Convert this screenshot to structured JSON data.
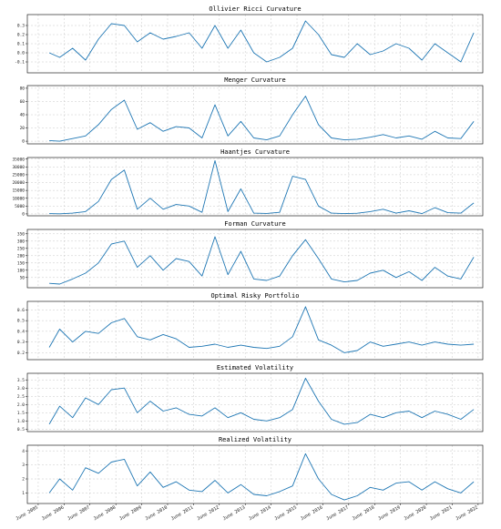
{
  "x_tick_labels": [
    "June 2005",
    "June 2006",
    "June 2007",
    "June 2008",
    "June 2009",
    "June 2010",
    "June 2011",
    "June 2012",
    "June 2013",
    "June 2014",
    "June 2015",
    "June 2016",
    "June 2017",
    "June 2018",
    "June 2019",
    "June 2020",
    "June 2021",
    "June 2022"
  ],
  "chart_data": [
    {
      "type": "line",
      "title": "Ollivier Ricci Curvature",
      "ylim": [
        -0.22,
        0.42
      ],
      "yticks": [
        {
          "v": -0.1,
          "label": "-0.1"
        },
        {
          "v": 0.0,
          "label": "0.0"
        },
        {
          "v": 0.1,
          "label": "0.1"
        },
        {
          "v": 0.2,
          "label": "0.2"
        },
        {
          "v": 0.3,
          "label": "0.3"
        }
      ],
      "x": [
        2005.85,
        2006.25,
        2006.75,
        2007.25,
        2007.75,
        2008.25,
        2008.75,
        2009.25,
        2009.75,
        2010.25,
        2010.75,
        2011.25,
        2011.75,
        2012.25,
        2012.75,
        2013.25,
        2013.75,
        2014.25,
        2014.75,
        2015.25,
        2015.75,
        2016.25,
        2016.75,
        2017.25,
        2017.75,
        2018.25,
        2018.75,
        2019.25,
        2019.75,
        2020.25,
        2020.75,
        2021.25,
        2021.75,
        2022.25
      ],
      "values": [
        0.0,
        -0.05,
        0.05,
        -0.08,
        0.15,
        0.32,
        0.3,
        0.12,
        0.22,
        0.15,
        0.18,
        0.22,
        0.05,
        0.3,
        0.05,
        0.25,
        0.0,
        -0.1,
        -0.05,
        0.05,
        0.35,
        0.2,
        -0.02,
        -0.05,
        0.1,
        -0.02,
        0.02,
        0.1,
        0.05,
        -0.08,
        0.1,
        0.0,
        -0.1,
        0.22
      ]
    },
    {
      "type": "line",
      "title": "Menger Curvature",
      "ylim": [
        -4,
        84
      ],
      "yticks": [
        {
          "v": 0,
          "label": "0"
        },
        {
          "v": 20,
          "label": "20"
        },
        {
          "v": 40,
          "label": "40"
        },
        {
          "v": 60,
          "label": "60"
        },
        {
          "v": 80,
          "label": "80"
        }
      ],
      "x": [
        2005.85,
        2006.25,
        2006.75,
        2007.25,
        2007.75,
        2008.25,
        2008.75,
        2009.25,
        2009.75,
        2010.25,
        2010.75,
        2011.25,
        2011.75,
        2012.25,
        2012.75,
        2013.25,
        2013.75,
        2014.25,
        2014.75,
        2015.25,
        2015.75,
        2016.25,
        2016.75,
        2017.25,
        2017.75,
        2018.25,
        2018.75,
        2019.25,
        2019.75,
        2020.25,
        2020.75,
        2021.25,
        2021.75,
        2022.25
      ],
      "values": [
        1,
        0,
        4,
        8,
        25,
        48,
        62,
        18,
        28,
        15,
        22,
        20,
        5,
        55,
        8,
        30,
        5,
        2,
        8,
        40,
        68,
        25,
        5,
        2,
        3,
        6,
        10,
        5,
        8,
        3,
        15,
        5,
        4,
        30
      ]
    },
    {
      "type": "line",
      "title": "Haantjes Curvature",
      "ylim": [
        -1200,
        36000
      ],
      "yticks": [
        {
          "v": 0,
          "label": "0"
        },
        {
          "v": 5000,
          "label": "5000"
        },
        {
          "v": 10000,
          "label": "10000"
        },
        {
          "v": 15000,
          "label": "15000"
        },
        {
          "v": 20000,
          "label": "20000"
        },
        {
          "v": 25000,
          "label": "25000"
        },
        {
          "v": 30000,
          "label": "30000"
        },
        {
          "v": 35000,
          "label": "35000"
        }
      ],
      "x": [
        2005.85,
        2006.25,
        2006.75,
        2007.25,
        2007.75,
        2008.25,
        2008.75,
        2009.25,
        2009.75,
        2010.25,
        2010.75,
        2011.25,
        2011.75,
        2012.25,
        2012.75,
        2013.25,
        2013.75,
        2014.25,
        2014.75,
        2015.25,
        2015.75,
        2016.25,
        2016.75,
        2017.25,
        2017.75,
        2018.25,
        2018.75,
        2019.25,
        2019.75,
        2020.25,
        2020.75,
        2021.25,
        2021.75,
        2022.25
      ],
      "values": [
        200,
        100,
        500,
        1500,
        8000,
        22000,
        28000,
        3000,
        10000,
        3000,
        6000,
        5000,
        1000,
        34000,
        1500,
        16000,
        500,
        300,
        1000,
        24000,
        22000,
        5000,
        500,
        200,
        400,
        1500,
        3000,
        500,
        2000,
        200,
        4000,
        800,
        500,
        7000
      ]
    },
    {
      "type": "line",
      "title": "Forman Curvature",
      "ylim": [
        -20,
        380
      ],
      "yticks": [
        {
          "v": 50,
          "label": "50"
        },
        {
          "v": 100,
          "label": "100"
        },
        {
          "v": 150,
          "label": "150"
        },
        {
          "v": 200,
          "label": "200"
        },
        {
          "v": 250,
          "label": "250"
        },
        {
          "v": 300,
          "label": "300"
        },
        {
          "v": 350,
          "label": "350"
        }
      ],
      "x": [
        2005.85,
        2006.25,
        2006.75,
        2007.25,
        2007.75,
        2008.25,
        2008.75,
        2009.25,
        2009.75,
        2010.25,
        2010.75,
        2011.25,
        2011.75,
        2012.25,
        2012.75,
        2013.25,
        2013.75,
        2014.25,
        2014.75,
        2015.25,
        2015.75,
        2016.25,
        2016.75,
        2017.25,
        2017.75,
        2018.25,
        2018.75,
        2019.25,
        2019.75,
        2020.25,
        2020.75,
        2021.25,
        2021.75,
        2022.25
      ],
      "values": [
        10,
        5,
        40,
        80,
        150,
        280,
        300,
        120,
        200,
        100,
        180,
        160,
        60,
        330,
        70,
        230,
        40,
        30,
        60,
        200,
        310,
        180,
        40,
        20,
        30,
        80,
        100,
        50,
        90,
        30,
        120,
        60,
        40,
        190
      ]
    },
    {
      "type": "line",
      "title": "Optimal Risky Portfolio",
      "ylim": [
        0.135,
        0.68
      ],
      "yticks": [
        {
          "v": 0.2,
          "label": "0.2"
        },
        {
          "v": 0.3,
          "label": "0.3"
        },
        {
          "v": 0.4,
          "label": "0.4"
        },
        {
          "v": 0.5,
          "label": "0.5"
        },
        {
          "v": 0.6,
          "label": "0.6"
        }
      ],
      "x": [
        2005.85,
        2006.25,
        2006.75,
        2007.25,
        2007.75,
        2008.25,
        2008.75,
        2009.25,
        2009.75,
        2010.25,
        2010.75,
        2011.25,
        2011.75,
        2012.25,
        2012.75,
        2013.25,
        2013.75,
        2014.25,
        2014.75,
        2015.25,
        2015.75,
        2016.25,
        2016.75,
        2017.25,
        2017.75,
        2018.25,
        2018.75,
        2019.25,
        2019.75,
        2020.25,
        2020.75,
        2021.25,
        2021.75,
        2022.25
      ],
      "values": [
        0.25,
        0.42,
        0.3,
        0.4,
        0.38,
        0.48,
        0.52,
        0.35,
        0.32,
        0.37,
        0.33,
        0.25,
        0.26,
        0.28,
        0.25,
        0.27,
        0.25,
        0.24,
        0.26,
        0.35,
        0.63,
        0.32,
        0.27,
        0.2,
        0.22,
        0.3,
        0.26,
        0.28,
        0.3,
        0.27,
        0.3,
        0.28,
        0.27,
        0.28
      ]
    },
    {
      "type": "line",
      "title": "Estimated Volatility",
      "ylim": [
        0.35,
        3.9
      ],
      "yticks": [
        {
          "v": 0.5,
          "label": "0.5"
        },
        {
          "v": 1.0,
          "label": "1.0"
        },
        {
          "v": 1.5,
          "label": "1.5"
        },
        {
          "v": 2.0,
          "label": "2.0"
        },
        {
          "v": 2.5,
          "label": "2.5"
        },
        {
          "v": 3.0,
          "label": "3.0"
        },
        {
          "v": 3.5,
          "label": "3.5"
        }
      ],
      "x": [
        2005.85,
        2006.25,
        2006.75,
        2007.25,
        2007.75,
        2008.25,
        2008.75,
        2009.25,
        2009.75,
        2010.25,
        2010.75,
        2011.25,
        2011.75,
        2012.25,
        2012.75,
        2013.25,
        2013.75,
        2014.25,
        2014.75,
        2015.25,
        2015.75,
        2016.25,
        2016.75,
        2017.25,
        2017.75,
        2018.25,
        2018.75,
        2019.25,
        2019.75,
        2020.25,
        2020.75,
        2021.25,
        2021.75,
        2022.25
      ],
      "values": [
        0.8,
        1.9,
        1.2,
        2.4,
        2.0,
        2.9,
        3.0,
        1.5,
        2.2,
        1.6,
        1.8,
        1.4,
        1.3,
        1.8,
        1.2,
        1.5,
        1.1,
        1.0,
        1.2,
        1.7,
        3.6,
        2.2,
        1.1,
        0.8,
        0.9,
        1.4,
        1.2,
        1.5,
        1.6,
        1.2,
        1.6,
        1.4,
        1.1,
        1.7
      ]
    },
    {
      "type": "line",
      "title": "Realized Volatility",
      "ylim": [
        0.25,
        4.4
      ],
      "yticks": [
        {
          "v": 1,
          "label": "1"
        },
        {
          "v": 2,
          "label": "2"
        },
        {
          "v": 3,
          "label": "3"
        },
        {
          "v": 4,
          "label": "4"
        }
      ],
      "x": [
        2005.85,
        2006.25,
        2006.75,
        2007.25,
        2007.75,
        2008.25,
        2008.75,
        2009.25,
        2009.75,
        2010.25,
        2010.75,
        2011.25,
        2011.75,
        2012.25,
        2012.75,
        2013.25,
        2013.75,
        2014.25,
        2014.75,
        2015.25,
        2015.75,
        2016.25,
        2016.75,
        2017.25,
        2017.75,
        2018.25,
        2018.75,
        2019.25,
        2019.75,
        2020.25,
        2020.75,
        2021.25,
        2021.75,
        2022.25
      ],
      "values": [
        1.0,
        2.0,
        1.2,
        2.8,
        2.4,
        3.2,
        3.4,
        1.5,
        2.5,
        1.4,
        1.8,
        1.2,
        1.1,
        1.9,
        1.0,
        1.6,
        0.9,
        0.8,
        1.1,
        1.5,
        3.8,
        2.0,
        0.9,
        0.5,
        0.8,
        1.4,
        1.2,
        1.7,
        1.8,
        1.2,
        1.8,
        1.3,
        1.0,
        1.8
      ]
    }
  ]
}
